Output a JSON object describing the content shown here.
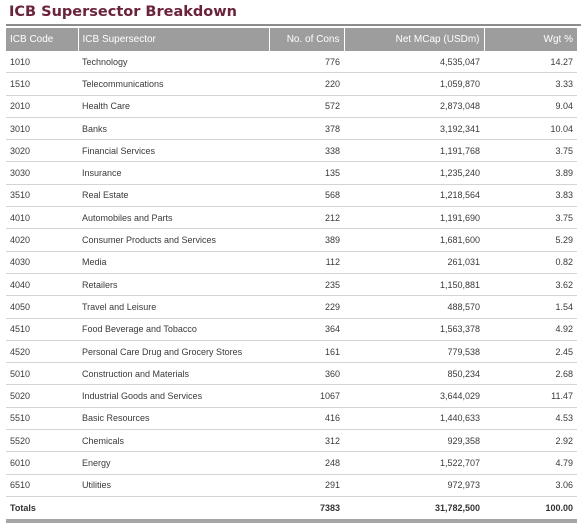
{
  "title": "ICB Supersector Breakdown",
  "table": {
    "headers": {
      "code": "ICB Code",
      "name": "ICB Supersector",
      "cons": "No. of Cons",
      "mcap": "Net MCap (USDm)",
      "wgt": "Wgt %"
    },
    "rows": [
      {
        "code": "1010",
        "name": "Technology",
        "cons": "776",
        "mcap": "4,535,047",
        "wgt": "14.27"
      },
      {
        "code": "1510",
        "name": "Telecommunications",
        "cons": "220",
        "mcap": "1,059,870",
        "wgt": "3.33"
      },
      {
        "code": "2010",
        "name": "Health Care",
        "cons": "572",
        "mcap": "2,873,048",
        "wgt": "9.04"
      },
      {
        "code": "3010",
        "name": "Banks",
        "cons": "378",
        "mcap": "3,192,341",
        "wgt": "10.04"
      },
      {
        "code": "3020",
        "name": "Financial Services",
        "cons": "338",
        "mcap": "1,191,768",
        "wgt": "3.75"
      },
      {
        "code": "3030",
        "name": "Insurance",
        "cons": "135",
        "mcap": "1,235,240",
        "wgt": "3.89"
      },
      {
        "code": "3510",
        "name": "Real Estate",
        "cons": "568",
        "mcap": "1,218,564",
        "wgt": "3.83"
      },
      {
        "code": "4010",
        "name": "Automobiles and Parts",
        "cons": "212",
        "mcap": "1,191,690",
        "wgt": "3.75"
      },
      {
        "code": "4020",
        "name": "Consumer Products and Services",
        "cons": "389",
        "mcap": "1,681,600",
        "wgt": "5.29"
      },
      {
        "code": "4030",
        "name": "Media",
        "cons": "112",
        "mcap": "261,031",
        "wgt": "0.82"
      },
      {
        "code": "4040",
        "name": "Retailers",
        "cons": "235",
        "mcap": "1,150,881",
        "wgt": "3.62"
      },
      {
        "code": "4050",
        "name": "Travel and Leisure",
        "cons": "229",
        "mcap": "488,570",
        "wgt": "1.54"
      },
      {
        "code": "4510",
        "name": "Food Beverage and Tobacco",
        "cons": "364",
        "mcap": "1,563,378",
        "wgt": "4.92"
      },
      {
        "code": "4520",
        "name": "Personal Care Drug and Grocery Stores",
        "cons": "161",
        "mcap": "779,538",
        "wgt": "2.45"
      },
      {
        "code": "5010",
        "name": "Construction and Materials",
        "cons": "360",
        "mcap": "850,234",
        "wgt": "2.68"
      },
      {
        "code": "5020",
        "name": "Industrial Goods and Services",
        "cons": "1067",
        "mcap": "3,644,029",
        "wgt": "11.47"
      },
      {
        "code": "5510",
        "name": "Basic Resources",
        "cons": "416",
        "mcap": "1,440,633",
        "wgt": "4.53"
      },
      {
        "code": "5520",
        "name": "Chemicals",
        "cons": "312",
        "mcap": "929,358",
        "wgt": "2.92"
      },
      {
        "code": "6010",
        "name": "Energy",
        "cons": "248",
        "mcap": "1,522,707",
        "wgt": "4.79"
      },
      {
        "code": "6510",
        "name": "Utilities",
        "cons": "291",
        "mcap": "972,973",
        "wgt": "3.06"
      }
    ],
    "totals": {
      "label": "Totals",
      "cons": "7383",
      "mcap": "31,782,500",
      "wgt": "100.00"
    }
  },
  "colors": {
    "title": "#6d2239",
    "header_bg": "#9d9d9d",
    "header_text": "#ffffff",
    "row_divider": "#d4d4d4"
  }
}
